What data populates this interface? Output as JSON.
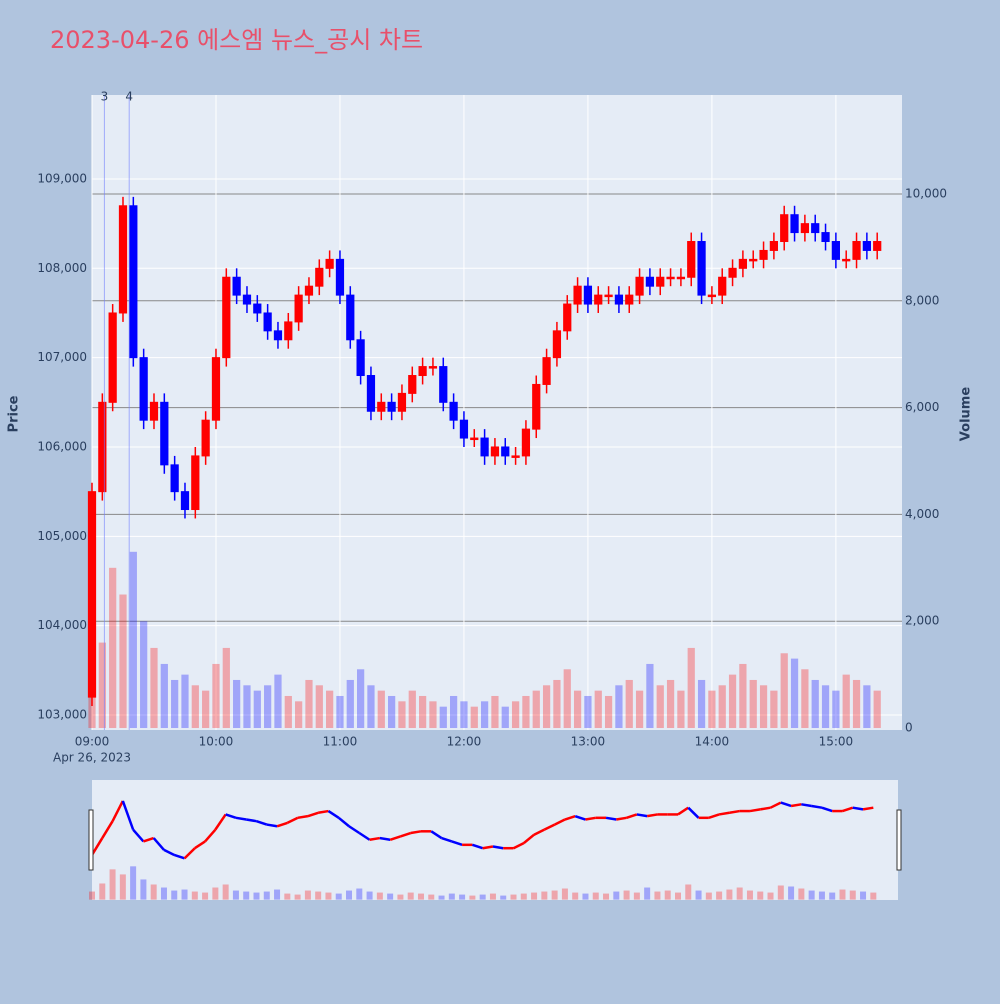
{
  "chart_data": {
    "type": "candlestick",
    "title": "2023-04-26 에스엠 뉴스_공시 차트",
    "y_label": "Price",
    "y2_label": "Volume",
    "increasing_color": "#ff0000",
    "decreasing_color": "#0000ff",
    "x": [
      "09:00",
      "09:05",
      "09:10",
      "09:15",
      "09:20",
      "09:25",
      "09:30",
      "09:35",
      "09:40",
      "09:45",
      "09:50",
      "09:55",
      "10:00",
      "10:05",
      "10:10",
      "10:15",
      "10:20",
      "10:25",
      "10:30",
      "10:35",
      "10:40",
      "10:45",
      "10:50",
      "10:55",
      "11:00",
      "11:05",
      "11:10",
      "11:15",
      "11:20",
      "11:25",
      "11:30",
      "11:35",
      "11:40",
      "11:45",
      "11:50",
      "11:55",
      "12:00",
      "12:05",
      "12:10",
      "12:15",
      "12:20",
      "12:25",
      "12:30",
      "12:35",
      "12:40",
      "12:45",
      "12:50",
      "12:55",
      "13:00",
      "13:05",
      "13:10",
      "13:15",
      "13:20",
      "13:25",
      "13:30",
      "13:35",
      "13:40",
      "13:45",
      "13:50",
      "13:55",
      "14:00",
      "14:05",
      "14:10",
      "14:15",
      "14:20",
      "14:25",
      "14:30",
      "14:35",
      "14:40",
      "14:45",
      "14:50",
      "14:55",
      "15:00",
      "15:05",
      "15:10",
      "15:15",
      "15:20"
    ],
    "open": [
      103200,
      105500,
      106500,
      107500,
      108700,
      107000,
      106300,
      106500,
      105800,
      105500,
      105300,
      105900,
      106300,
      107000,
      107900,
      107700,
      107600,
      107500,
      107300,
      107200,
      107400,
      107700,
      107800,
      108000,
      108100,
      107700,
      107200,
      106800,
      106400,
      106500,
      106400,
      106600,
      106800,
      106900,
      106900,
      106500,
      106300,
      106100,
      106100,
      105900,
      106000,
      105900,
      105900,
      106200,
      106700,
      107000,
      107300,
      107600,
      107800,
      107600,
      107700,
      107700,
      107600,
      107700,
      107900,
      107800,
      107900,
      107900,
      107900,
      108300,
      107700,
      107700,
      107900,
      108000,
      108100,
      108100,
      108200,
      108300,
      108600,
      108400,
      108500,
      108400,
      108300,
      108100,
      108100,
      108300,
      108200
    ],
    "high": [
      105600,
      106600,
      107600,
      108800,
      108800,
      107100,
      106600,
      106600,
      105900,
      105600,
      106000,
      106400,
      107100,
      108000,
      108000,
      107800,
      107700,
      107600,
      107400,
      107500,
      107800,
      107900,
      108100,
      108200,
      108200,
      107800,
      107300,
      106900,
      106600,
      106600,
      106700,
      106900,
      107000,
      107000,
      107000,
      106600,
      106400,
      106200,
      106200,
      106100,
      106100,
      106000,
      106300,
      106800,
      107100,
      107400,
      107700,
      107900,
      107900,
      107800,
      107800,
      107800,
      107800,
      108000,
      108000,
      108000,
      108000,
      108000,
      108400,
      108400,
      107800,
      108000,
      108100,
      108200,
      108200,
      108300,
      108400,
      108700,
      108700,
      108600,
      108600,
      108500,
      108400,
      108200,
      108400,
      108400,
      108400
    ],
    "low": [
      103100,
      105400,
      106400,
      107400,
      106900,
      106200,
      106200,
      105700,
      105400,
      105200,
      105200,
      105800,
      106200,
      106900,
      107600,
      107500,
      107400,
      107200,
      107100,
      107100,
      107300,
      107600,
      107700,
      107900,
      107600,
      107100,
      106700,
      106300,
      106300,
      106300,
      106300,
      106500,
      106700,
      106800,
      106400,
      106200,
      106000,
      106000,
      105800,
      105800,
      105800,
      105800,
      105800,
      106100,
      106600,
      106900,
      107200,
      107500,
      107500,
      107500,
      107600,
      107500,
      107500,
      107600,
      107700,
      107700,
      107800,
      107800,
      107800,
      107600,
      107600,
      107600,
      107800,
      107900,
      108000,
      108000,
      108100,
      108200,
      108300,
      108300,
      108300,
      108200,
      108000,
      108000,
      108000,
      108100,
      108100
    ],
    "close": [
      105500,
      106500,
      107500,
      108700,
      107000,
      106300,
      106500,
      105800,
      105500,
      105300,
      105900,
      106300,
      107000,
      107900,
      107700,
      107600,
      107500,
      107300,
      107200,
      107400,
      107700,
      107800,
      108000,
      108100,
      107700,
      107200,
      106800,
      106400,
      106500,
      106400,
      106600,
      106800,
      106900,
      106900,
      106500,
      106300,
      106100,
      106100,
      105900,
      106000,
      105900,
      105900,
      106200,
      106700,
      107000,
      107300,
      107600,
      107800,
      107600,
      107700,
      107700,
      107600,
      107700,
      107900,
      107800,
      107900,
      107900,
      107900,
      108300,
      107700,
      107700,
      107900,
      108000,
      108100,
      108100,
      108200,
      108300,
      108600,
      108400,
      108500,
      108400,
      108300,
      108100,
      108100,
      108300,
      108200,
      108300
    ],
    "volume": [
      800,
      1600,
      3000,
      2500,
      3300,
      2000,
      1500,
      1200,
      900,
      1000,
      800,
      700,
      1200,
      1500,
      900,
      800,
      700,
      800,
      1000,
      600,
      500,
      900,
      800,
      700,
      600,
      900,
      1100,
      800,
      700,
      600,
      500,
      700,
      600,
      500,
      400,
      600,
      500,
      400,
      500,
      600,
      400,
      500,
      600,
      700,
      800,
      900,
      1100,
      700,
      600,
      700,
      600,
      800,
      900,
      700,
      1200,
      800,
      900,
      700,
      1500,
      900,
      700,
      800,
      1000,
      1200,
      900,
      800,
      700,
      1400,
      1300,
      1100,
      900,
      800,
      700,
      1000,
      900,
      800,
      700
    ],
    "annotations": [
      {
        "x": "09:06",
        "text": "3"
      },
      {
        "x": "09:18",
        "text": "4"
      }
    ],
    "xlim": [
      "09:00",
      "15:32"
    ],
    "xticks": [
      "09:00",
      "10:00",
      "11:00",
      "12:00",
      "13:00",
      "14:00",
      "15:00"
    ],
    "xtick_sublabel": "Apr 26, 2023",
    "ylim": [
      102832,
      109940
    ],
    "yticks": [
      {
        "value": 103000,
        "label": "103,000"
      },
      {
        "value": 104000,
        "label": "104,000"
      },
      {
        "value": 105000,
        "label": "105,000"
      },
      {
        "value": 106000,
        "label": "106,000"
      },
      {
        "value": 107000,
        "label": "107,000"
      },
      {
        "value": 108000,
        "label": "108,000"
      },
      {
        "value": 109000,
        "label": "109,000"
      }
    ],
    "y2lim": [
      -37,
      11854
    ],
    "y2ticks": [
      0,
      {
        "value": 2000,
        "label": "2,000"
      },
      {
        "value": 4000,
        "label": "4,000"
      },
      {
        "value": 6000,
        "label": "6,000"
      },
      {
        "value": 8000,
        "label": "8,000"
      },
      {
        "value": 10000,
        "label": "10,000"
      }
    ],
    "rangeslider": true
  }
}
